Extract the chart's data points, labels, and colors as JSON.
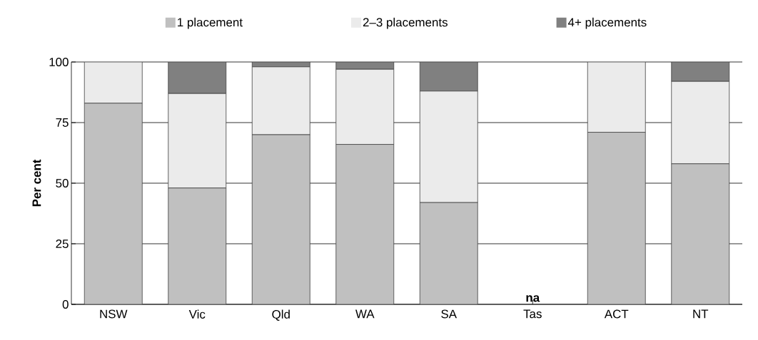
{
  "chart_data": {
    "type": "bar",
    "stacked": true,
    "ylabel": "Per cent",
    "categories": [
      "NSW",
      "Vic",
      "Qld",
      "WA",
      "SA",
      "Tas",
      "ACT",
      "NT"
    ],
    "series": [
      {
        "name": "1 placement",
        "color": "#c0c0c0",
        "values": [
          83,
          48,
          70,
          66,
          42,
          null,
          71,
          58
        ]
      },
      {
        "name": "2–3 placements",
        "color": "#ebebeb",
        "values": [
          17,
          39,
          28,
          31,
          46,
          null,
          29,
          34
        ]
      },
      {
        "name": "4+ placements",
        "color": "#808080",
        "values": [
          0,
          13,
          2,
          3,
          12,
          null,
          0,
          8
        ]
      }
    ],
    "ylim": [
      0,
      100
    ],
    "yticks": [
      0,
      25,
      50,
      75,
      100
    ],
    "grid": "y",
    "legend": "top",
    "annotations": [
      "na"
    ]
  }
}
